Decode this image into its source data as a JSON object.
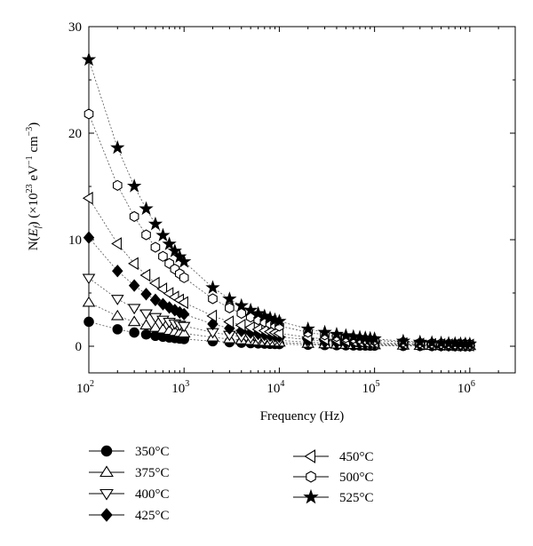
{
  "chart_data": {
    "type": "scatter",
    "xlabel": "Frequency (Hz)",
    "ylabel": {
      "prefix": "N(",
      "var": "E",
      "sub": "f",
      "suffix": ") (×10",
      "exp": "23",
      "unit": " eV",
      "unit_exp": "−1",
      "unit2": " cm",
      "unit2_exp": "−3",
      "close": ")"
    },
    "x_scale": "log",
    "xlim": [
      100,
      3000000
    ],
    "ylim": [
      -2.5,
      30
    ],
    "y_ticks": [
      0,
      10,
      20,
      30
    ],
    "x_ticks": [
      {
        "value": 100,
        "base": "10",
        "exp": "2"
      },
      {
        "value": 1000,
        "base": "10",
        "exp": "3"
      },
      {
        "value": 10000,
        "base": "10",
        "exp": "4"
      },
      {
        "value": 100000,
        "base": "10",
        "exp": "5"
      },
      {
        "value": 1000000,
        "base": "10",
        "exp": "6"
      }
    ],
    "grid": false,
    "legend_position": "below",
    "x": [
      100,
      200,
      300,
      400,
      500,
      600,
      700,
      800,
      900,
      1000,
      2000,
      3000,
      4000,
      5000,
      6000,
      7000,
      8000,
      9000,
      10000,
      20000,
      30000,
      40000,
      50000,
      60000,
      70000,
      80000,
      90000,
      100000,
      200000,
      300000,
      400000,
      500000,
      600000,
      700000,
      800000,
      900000,
      1000000
    ],
    "series": [
      {
        "name": "350°C",
        "marker": "circle",
        "fill": "black",
        "A": 2.3,
        "alpha": 0.53
      },
      {
        "name": "375°C",
        "marker": "triangle-up",
        "fill": "white",
        "A": 4.1,
        "alpha": 0.53
      },
      {
        "name": "400°C",
        "marker": "triangle-down",
        "fill": "white",
        "A": 6.4,
        "alpha": 0.53
      },
      {
        "name": "425°C",
        "marker": "diamond",
        "fill": "black",
        "A": 10.2,
        "alpha": 0.53
      },
      {
        "name": "450°C",
        "marker": "triangle-left",
        "fill": "white",
        "A": 13.9,
        "alpha": 0.53
      },
      {
        "name": "500°C",
        "marker": "hexagon",
        "fill": "white",
        "A": 21.8,
        "alpha": 0.53
      },
      {
        "name": "525°C",
        "marker": "star",
        "fill": "black",
        "A": 26.9,
        "alpha": 0.53
      }
    ],
    "legend_items": [
      {
        "label": "350°C",
        "marker": "circle",
        "fill": "black"
      },
      {
        "label": "375°C",
        "marker": "triangle-up",
        "fill": "white"
      },
      {
        "label": "400°C",
        "marker": "triangle-down",
        "fill": "white"
      },
      {
        "label": "425°C",
        "marker": "diamond",
        "fill": "black"
      },
      {
        "label": "450°C",
        "marker": "triangle-left",
        "fill": "white"
      },
      {
        "label": "500°C",
        "marker": "hexagon",
        "fill": "white"
      },
      {
        "label": "525°C",
        "marker": "star",
        "fill": "black"
      }
    ]
  }
}
